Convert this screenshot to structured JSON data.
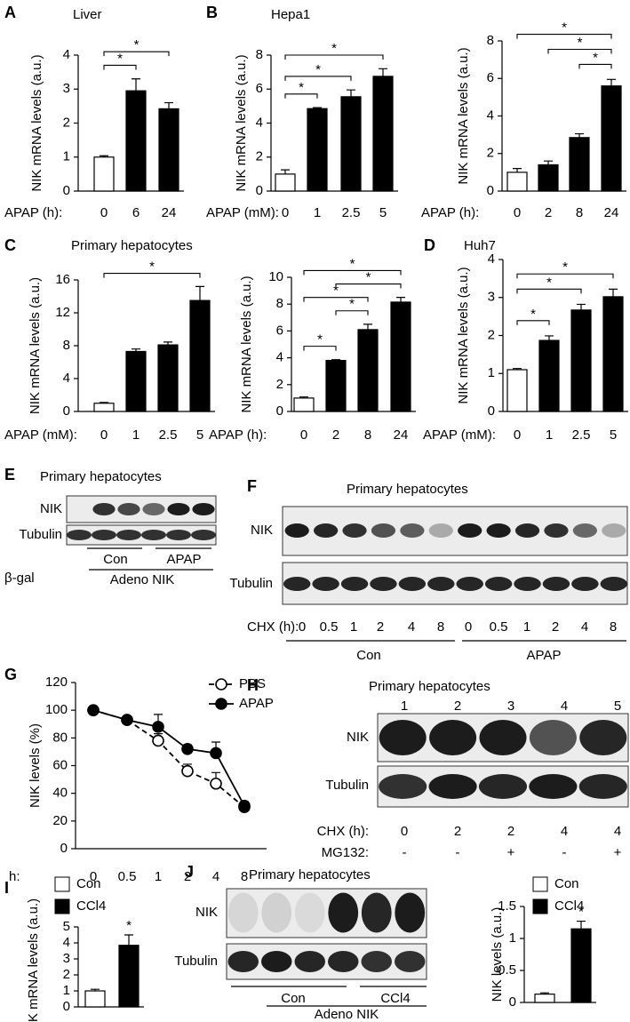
{
  "chart_data": [
    {
      "panel": "A",
      "type": "bar",
      "title": "Liver",
      "ylabel": "NIK mRNA levels (a.u.)",
      "xlabel": "APAP (h):",
      "categories": [
        "0",
        "6",
        "24"
      ],
      "values": [
        1.0,
        2.95,
        2.42
      ],
      "errors": [
        0.04,
        0.35,
        0.18
      ],
      "colors": [
        "#ffffff",
        "#000000",
        "#000000"
      ],
      "ylim": [
        0,
        4
      ],
      "yticks": [
        0,
        1,
        2,
        3,
        4
      ],
      "brackets": [
        {
          "from": 0,
          "to": 1,
          "label": "*"
        },
        {
          "from": 0,
          "to": 2,
          "label": "*"
        }
      ]
    },
    {
      "panel": "B",
      "type": "bar",
      "title": "Hepa1",
      "ylabel": "NIK mRNA levels (a.u.)",
      "xlabel": "APAP (mM):",
      "categories": [
        "0",
        "1",
        "2.5",
        "5"
      ],
      "values": [
        1.0,
        4.85,
        5.55,
        6.75
      ],
      "errors": [
        0.25,
        0.06,
        0.4,
        0.45
      ],
      "colors": [
        "#ffffff",
        "#000000",
        "#000000",
        "#000000"
      ],
      "ylim": [
        0,
        8
      ],
      "yticks": [
        0,
        2,
        4,
        6,
        8
      ],
      "brackets": [
        {
          "from": 0,
          "to": 1,
          "label": "*"
        },
        {
          "from": 0,
          "to": 2,
          "label": "*"
        },
        {
          "from": 0,
          "to": 3,
          "label": "*"
        }
      ]
    },
    {
      "type": "bar",
      "ylabel": "NIK mRNA levels (a.u.)",
      "xlabel": "APAP (h):",
      "categories": [
        "0",
        "2",
        "8",
        "24"
      ],
      "values": [
        1.0,
        1.4,
        2.85,
        5.6
      ],
      "errors": [
        0.2,
        0.2,
        0.2,
        0.35
      ],
      "colors": [
        "#ffffff",
        "#000000",
        "#000000",
        "#000000"
      ],
      "ylim": [
        0,
        8
      ],
      "yticks": [
        0,
        2,
        4,
        6,
        8
      ],
      "brackets": [
        {
          "from": 2,
          "to": 3,
          "label": "*"
        },
        {
          "from": 1,
          "to": 3,
          "label": "*"
        },
        {
          "from": 0,
          "to": 3,
          "label": "*"
        }
      ]
    },
    {
      "panel": "C",
      "type": "bar",
      "title": "Primary hepatocytes",
      "ylabel": "NIK mRNA levels (a.u.)",
      "xlabel": "APAP (mM):",
      "categories": [
        "0",
        "1",
        "2.5",
        "5"
      ],
      "values": [
        1.0,
        7.3,
        8.1,
        13.5
      ],
      "errors": [
        0.1,
        0.3,
        0.35,
        1.7
      ],
      "colors": [
        "#ffffff",
        "#000000",
        "#000000",
        "#000000"
      ],
      "ylim": [
        0,
        16
      ],
      "yticks": [
        0,
        4,
        8,
        12,
        16
      ],
      "brackets": [
        {
          "from": 0,
          "to": 3,
          "label": "*"
        }
      ]
    },
    {
      "type": "bar",
      "ylabel": "NIK mRNA levels (a.u.)",
      "xlabel": "APAP (h):",
      "categories": [
        "0",
        "2",
        "8",
        "24"
      ],
      "values": [
        1.0,
        3.8,
        6.1,
        8.15
      ],
      "errors": [
        0.08,
        0.06,
        0.4,
        0.35
      ],
      "colors": [
        "#ffffff",
        "#000000",
        "#000000",
        "#000000"
      ],
      "ylim": [
        0,
        10
      ],
      "yticks": [
        0,
        2,
        4,
        6,
        8,
        10
      ],
      "brackets": [
        {
          "from": 0,
          "to": 1,
          "label": "*"
        },
        {
          "from": 1,
          "to": 2,
          "label": "*"
        },
        {
          "from": 0,
          "to": 2,
          "label": "*"
        },
        {
          "from": 1,
          "to": 3,
          "label": "*"
        },
        {
          "from": 0,
          "to": 3,
          "label": "*"
        }
      ]
    },
    {
      "panel": "D",
      "type": "bar",
      "title": "Huh7",
      "ylabel": "NIK mRNA levels (a.u.)",
      "xlabel": "APAP (mM):",
      "categories": [
        "0",
        "1",
        "2.5",
        "5"
      ],
      "values": [
        1.1,
        1.87,
        2.67,
        3.02
      ],
      "errors": [
        0.03,
        0.12,
        0.15,
        0.2
      ],
      "colors": [
        "#ffffff",
        "#000000",
        "#000000",
        "#000000"
      ],
      "ylim": [
        0,
        4
      ],
      "yticks": [
        0,
        1,
        2,
        3,
        4
      ],
      "brackets": [
        {
          "from": 0,
          "to": 1,
          "label": "*"
        },
        {
          "from": 0,
          "to": 2,
          "label": "*"
        },
        {
          "from": 0,
          "to": 3,
          "label": "*"
        }
      ]
    },
    {
      "panel": "G",
      "type": "line",
      "ylabel": "NIK  levels (%)",
      "xlabel": "h:",
      "categories": [
        "0",
        "0.5",
        "1",
        "2",
        "4",
        "8"
      ],
      "series": [
        {
          "name": "PBS",
          "color": "#000000",
          "marker": "open",
          "dashed": true,
          "values": [
            100,
            93,
            78,
            56,
            47,
            30
          ],
          "errors": [
            0,
            0,
            5,
            5,
            8,
            0
          ]
        },
        {
          "name": "APAP",
          "color": "#000000",
          "marker": "filled",
          "dashed": false,
          "values": [
            100,
            93,
            88,
            72,
            69,
            31
          ],
          "errors": [
            0,
            2,
            9,
            3,
            8,
            3
          ]
        }
      ],
      "ylim": [
        0,
        120
      ],
      "yticks": [
        0,
        20,
        40,
        60,
        80,
        100,
        120
      ]
    },
    {
      "panel": "I",
      "type": "bar",
      "ylabel": "NIK mRNA levels (a.u.)",
      "categories": [
        "Con",
        "CCl4"
      ],
      "legend": true,
      "values": [
        1.0,
        3.85
      ],
      "errors": [
        0.1,
        0.65
      ],
      "colors": [
        "#ffffff",
        "#000000"
      ],
      "ylim": [
        0,
        5
      ],
      "yticks": [
        0,
        1,
        2,
        3,
        4,
        5
      ],
      "annotations": [
        {
          "index": 1,
          "label": "*"
        }
      ]
    },
    {
      "type": "bar",
      "ylabel": "NIK levels (a.u.)",
      "categories": [
        "Con",
        "CCl4"
      ],
      "legend": true,
      "values": [
        0.13,
        1.15
      ],
      "errors": [
        0.02,
        0.12
      ],
      "colors": [
        "#ffffff",
        "#000000"
      ],
      "ylim": [
        0,
        1.5
      ],
      "yticks": [
        0,
        0.5,
        1,
        1.5
      ],
      "annotations": [
        {
          "index": 1,
          "label": "*"
        }
      ]
    }
  ],
  "blots": [
    {
      "panel": "E",
      "title": "Primary hepatocytes",
      "rows": [
        "NIK",
        "Tubulin"
      ],
      "control": "β-gal",
      "groups": [
        "Con",
        "APAP"
      ],
      "construct": "Adeno NIK"
    },
    {
      "panel": "F",
      "title": "Primary hepatocytes",
      "rows": [
        "NIK",
        "Tubulin"
      ],
      "lane_label": "CHX (h):",
      "lanes": [
        "0",
        "0.5",
        "1",
        "2",
        "4",
        "8",
        "0",
        "0.5",
        "1",
        "2",
        "4",
        "8"
      ],
      "groups": [
        "Con",
        "APAP"
      ]
    },
    {
      "panel": "H",
      "title": "Primary hepatocytes",
      "lane_numbers": [
        "1",
        "2",
        "3",
        "4",
        "5"
      ],
      "rows": [
        "NIK",
        "Tubulin"
      ],
      "lane_label": "CHX (h):",
      "lanes": [
        "0",
        "2",
        "2",
        "4",
        "4"
      ],
      "treatment_label": "MG132:",
      "treatment": [
        "-",
        "-",
        "+",
        "-",
        "+"
      ]
    },
    {
      "panel": "J",
      "title": "Primary hepatocytes",
      "rows": [
        "NIK",
        "Tubulin"
      ],
      "groups": [
        "Con",
        "CCl4"
      ],
      "construct": "Adeno NIK"
    }
  ]
}
